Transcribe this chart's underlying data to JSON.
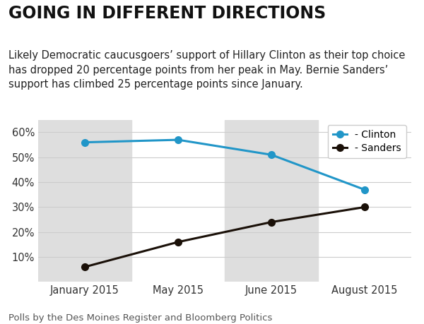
{
  "title": "GOING IN DIFFERENT DIRECTIONS",
  "subtitle": "Likely Democratic caucusgoers’ support of Hillary Clinton as their top choice\nhas dropped 20 percentage points from her peak in May. Bernie Sanders’\nsupport has climbed 25 percentage points since January.",
  "footnote": "Polls by the Des Moines Register and Bloomberg Politics",
  "x_labels": [
    "January 2015",
    "May 2015",
    "June 2015",
    "August 2015"
  ],
  "x_positions": [
    0,
    1,
    2,
    3
  ],
  "clinton_values": [
    56,
    57,
    51,
    37
  ],
  "sanders_values": [
    6,
    16,
    24,
    30
  ],
  "clinton_color": "#2196c8",
  "sanders_color": "#1a1008",
  "background_color": "#ffffff",
  "shaded_color": "#dedede",
  "ylim": [
    0,
    65
  ],
  "yticks": [
    10,
    20,
    30,
    40,
    50,
    60
  ],
  "legend_clinton": "- Clinton",
  "legend_sanders": "- Sanders",
  "title_fontsize": 17,
  "subtitle_fontsize": 10.5,
  "footnote_fontsize": 9.5,
  "tick_fontsize": 10.5
}
